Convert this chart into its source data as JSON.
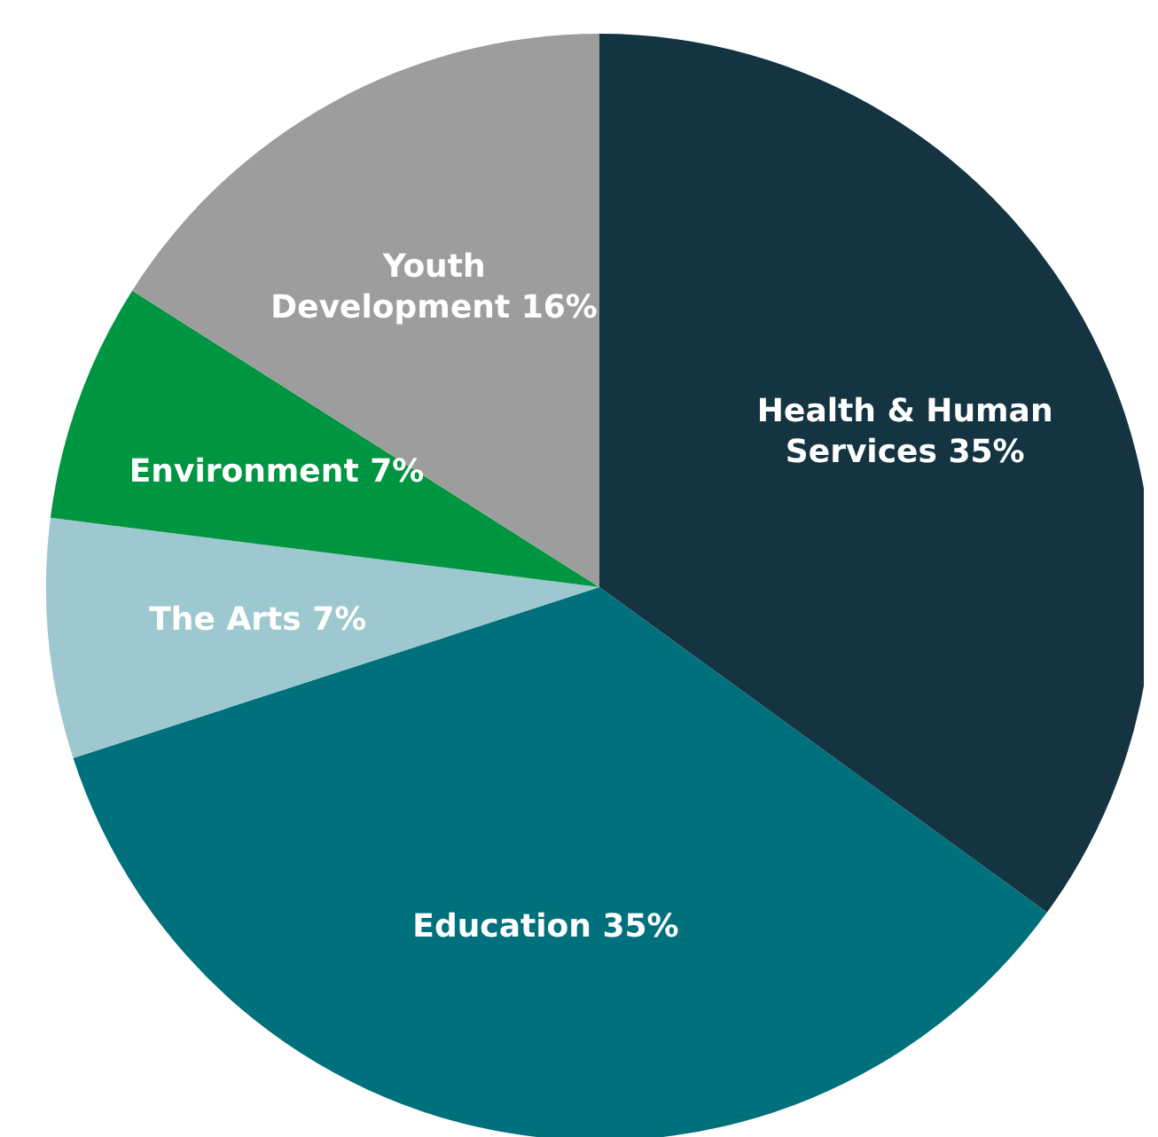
{
  "chart_data": {
    "type": "pie",
    "categories": [
      "Health & Human Services",
      "Education",
      "The Arts",
      "Environment",
      "Youth Development"
    ],
    "values": [
      35,
      35,
      7,
      7,
      16
    ],
    "colors": [
      "#133440",
      "#00707c",
      "#9ec8cf",
      "#009540",
      "#9d9d9d"
    ],
    "value_labels": [
      "35%",
      "35%",
      "7%",
      "7%",
      "16%"
    ],
    "legend": false
  }
}
